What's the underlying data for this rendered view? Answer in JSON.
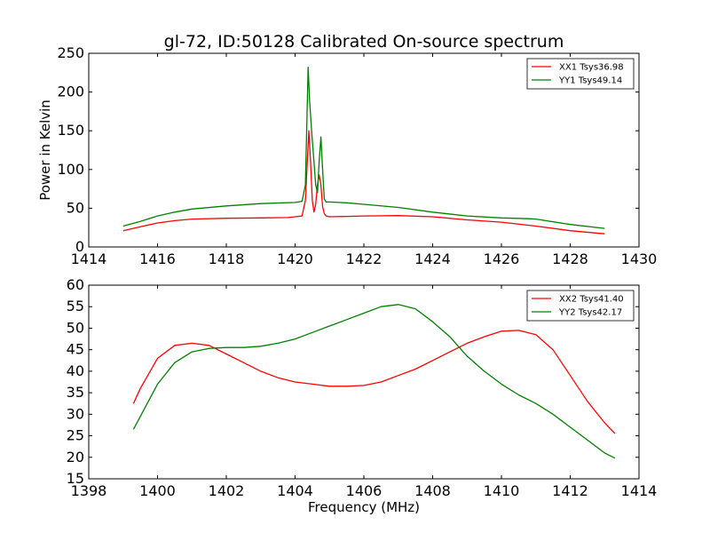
{
  "title": "gl-72, ID:50128 Calibrated On-source spectrum",
  "chart_data": [
    {
      "type": "line",
      "xlabel": "",
      "ylabel": "Power in Kelvin",
      "xlim": [
        1414,
        1430
      ],
      "ylim": [
        0,
        250
      ],
      "xticks": [
        "1414",
        "1416",
        "1418",
        "1420",
        "1422",
        "1424",
        "1426",
        "1428",
        "1430"
      ],
      "yticks": [
        "0",
        "50",
        "100",
        "150",
        "200",
        "250"
      ],
      "legend_position": "top-right",
      "series": [
        {
          "name": "XX1 Tsys36.98",
          "color": "#ff0000",
          "x": [
            1415.0,
            1415.5,
            1416.0,
            1416.5,
            1417.0,
            1418.0,
            1419.0,
            1419.8,
            1420.2,
            1420.3,
            1420.4,
            1420.45,
            1420.5,
            1420.55,
            1420.6,
            1420.65,
            1420.7,
            1420.75,
            1420.8,
            1420.85,
            1420.9,
            1421.0,
            1421.5,
            1422.0,
            1423.0,
            1424.0,
            1425.0,
            1426.0,
            1427.0,
            1428.0,
            1429.0
          ],
          "y": [
            21,
            26,
            31,
            34,
            36,
            37,
            37.5,
            38,
            40,
            60,
            150,
            110,
            60,
            45,
            55,
            80,
            93,
            80,
            52,
            43,
            40,
            39,
            39.5,
            40,
            40.5,
            39,
            35,
            32,
            27,
            21,
            17
          ]
        },
        {
          "name": "YY1 Tsys49.14",
          "color": "#008000",
          "x": [
            1415.0,
            1415.5,
            1416.0,
            1416.5,
            1417.0,
            1418.0,
            1419.0,
            1420.0,
            1420.2,
            1420.3,
            1420.38,
            1420.42,
            1420.48,
            1420.55,
            1420.6,
            1420.65,
            1420.7,
            1420.75,
            1420.8,
            1420.85,
            1420.9,
            1421.0,
            1421.5,
            1422.0,
            1423.0,
            1424.0,
            1425.0,
            1426.0,
            1426.8,
            1427.0,
            1428.0,
            1429.0
          ],
          "y": [
            27,
            33,
            40,
            45,
            49,
            53,
            56,
            57.5,
            59,
            80,
            232,
            190,
            150,
            110,
            80,
            70,
            110,
            142,
            100,
            62,
            58,
            58,
            57,
            55,
            51,
            45,
            40,
            37.5,
            36.5,
            36,
            29,
            24
          ]
        }
      ]
    },
    {
      "type": "line",
      "xlabel": "Frequency (MHz)",
      "ylabel": "",
      "xlim": [
        1398,
        1414
      ],
      "ylim": [
        15,
        60
      ],
      "xticks": [
        "1398",
        "1400",
        "1402",
        "1404",
        "1406",
        "1408",
        "1410",
        "1412",
        "1414"
      ],
      "yticks": [
        "15",
        "20",
        "25",
        "30",
        "35",
        "40",
        "45",
        "50",
        "55",
        "60"
      ],
      "legend_position": "top-right",
      "series": [
        {
          "name": "XX2 Tsys41.40",
          "color": "#ff0000",
          "x": [
            1399.3,
            1399.5,
            1400.0,
            1400.5,
            1401.0,
            1401.5,
            1402.0,
            1402.5,
            1403.0,
            1403.5,
            1404.0,
            1404.5,
            1405.0,
            1405.5,
            1406.0,
            1406.5,
            1407.0,
            1407.5,
            1408.0,
            1408.5,
            1409.0,
            1409.5,
            1410.0,
            1410.5,
            1411.0,
            1411.5,
            1412.0,
            1412.5,
            1413.0,
            1413.3
          ],
          "y": [
            32.5,
            36,
            43,
            46,
            46.5,
            46,
            44,
            42,
            40,
            38.5,
            37.5,
            37,
            36.5,
            36.5,
            36.7,
            37.5,
            39,
            40.5,
            42.5,
            44.5,
            46.5,
            48,
            49.3,
            49.5,
            48.5,
            45,
            39,
            33,
            28,
            25.5
          ]
        },
        {
          "name": "YY2 Tsys42.17",
          "color": "#008000",
          "x": [
            1399.3,
            1399.5,
            1400.0,
            1400.5,
            1401.0,
            1401.5,
            1402.0,
            1402.5,
            1403.0,
            1403.5,
            1404.0,
            1404.5,
            1405.0,
            1405.5,
            1406.0,
            1406.5,
            1407.0,
            1407.5,
            1408.0,
            1408.5,
            1409.0,
            1409.5,
            1410.0,
            1410.5,
            1411.0,
            1411.5,
            1412.0,
            1412.5,
            1413.0,
            1413.3
          ],
          "y": [
            26.5,
            29.5,
            37,
            42,
            44.5,
            45.3,
            45.5,
            45.5,
            45.8,
            46.5,
            47.5,
            49,
            50.5,
            52,
            53.5,
            55,
            55.5,
            54.5,
            51.5,
            48,
            43.5,
            40,
            37,
            34.5,
            32.5,
            30,
            27,
            24,
            21,
            19.8
          ]
        }
      ]
    }
  ]
}
